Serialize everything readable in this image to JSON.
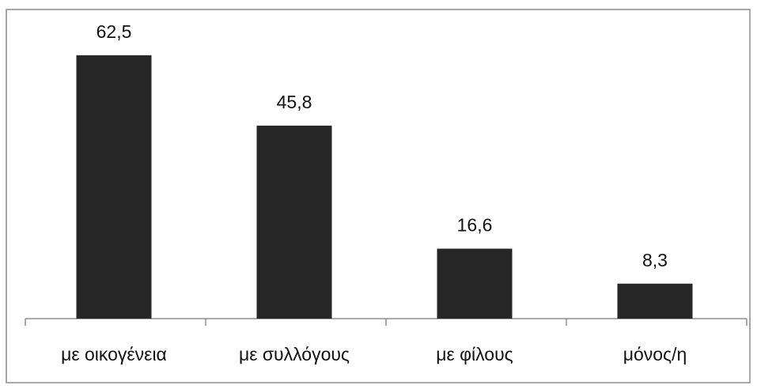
{
  "chart_data": {
    "type": "bar",
    "categories": [
      "με οικογένεια",
      "με συλλόγους",
      "με φίλους",
      "μόνος/η"
    ],
    "values": [
      62.5,
      45.8,
      16.6,
      8.3
    ],
    "value_labels": [
      "62,5",
      "45,8",
      "16,6",
      "8,3"
    ],
    "color": "#262626"
  }
}
